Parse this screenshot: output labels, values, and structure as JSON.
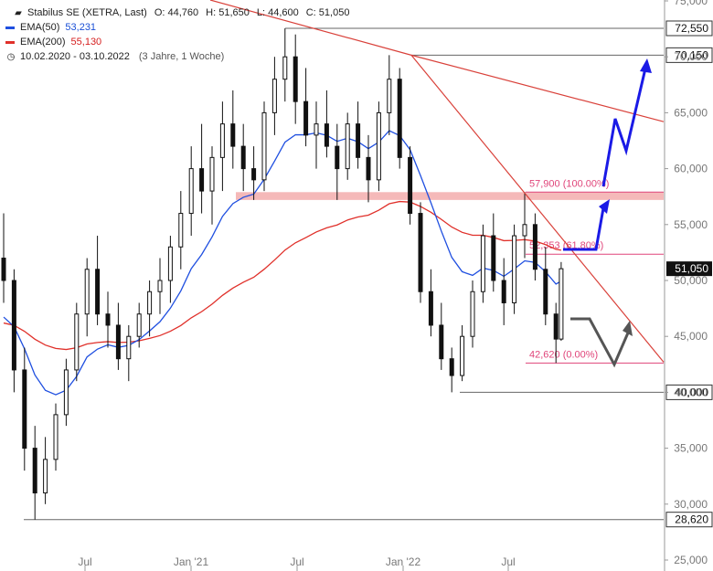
{
  "legend": {
    "title": "Stabilus SE (XETRA, Last)",
    "open": "O: 44,760",
    "high": "H: 51,650",
    "low": "L: 44,600",
    "close": "C: 51,050",
    "ema50_label": "EMA(50)",
    "ema50_value": "53,231",
    "ema200_label": "EMA(200)",
    "ema200_value": "55,130",
    "range": "10.02.2020 - 03.10.2022",
    "duration": "(3 Jahre, 1 Woche)"
  },
  "colors": {
    "ema50": "#1f4fe0",
    "ema200": "#e0302a",
    "trendline": "#d9413a",
    "projection": "#1a1ae6",
    "grey_arrow": "#555555",
    "fib_text": "#e0457a",
    "resistance_zone": "#f2a8a8"
  },
  "icons": [
    "candlestick-icon",
    "clock-icon"
  ],
  "chart_data": {
    "type": "candlestick",
    "title": "Stabilus SE (XETRA, Last)",
    "ylim": [
      25000,
      75000
    ],
    "y_ticks": [
      "25,000",
      "30,000",
      "35,000",
      "40,000",
      "45,000",
      "50,000",
      "55,000",
      "60,000",
      "65,000",
      "70,000",
      "75,000"
    ],
    "x_ticks": [
      "Jul",
      "Jan '21",
      "Jul",
      "Jan '22",
      "Jul"
    ],
    "last_price": "51,050",
    "ema50_last": "53,231",
    "ema200_last": "55,130",
    "price_levels": [
      {
        "label": "72,550",
        "value": 72550
      },
      {
        "label": "70,150",
        "value": 70150
      },
      {
        "label": "40,000",
        "value": 40000
      },
      {
        "label": "28,620",
        "value": 28620
      }
    ],
    "fib_labels": [
      {
        "label": "57,900 (100.00%)",
        "value": 57900
      },
      {
        "label": "52,353 (61.80%)",
        "value": 52353
      },
      {
        "label": "42,620 (0.00%)",
        "value": 42620
      }
    ],
    "resistance_zone": [
      57200,
      57900
    ],
    "candles_weekly_approx": [
      {
        "t": 0,
        "o": 52000,
        "h": 56000,
        "l": 48000,
        "c": 50000
      },
      {
        "t": 2,
        "o": 50000,
        "h": 51000,
        "l": 40000,
        "c": 42000
      },
      {
        "t": 4,
        "o": 42000,
        "h": 44000,
        "l": 33000,
        "c": 35000
      },
      {
        "t": 6,
        "o": 35000,
        "h": 37000,
        "l": 28620,
        "c": 31000
      },
      {
        "t": 8,
        "o": 31000,
        "h": 36000,
        "l": 30000,
        "c": 34000
      },
      {
        "t": 10,
        "o": 34000,
        "h": 39000,
        "l": 33000,
        "c": 38000
      },
      {
        "t": 12,
        "o": 38000,
        "h": 43000,
        "l": 37000,
        "c": 42000
      },
      {
        "t": 14,
        "o": 42000,
        "h": 48000,
        "l": 41000,
        "c": 47000
      },
      {
        "t": 16,
        "o": 47000,
        "h": 52000,
        "l": 45000,
        "c": 51000
      },
      {
        "t": 18,
        "o": 51000,
        "h": 54000,
        "l": 46000,
        "c": 47000
      },
      {
        "t": 20,
        "o": 47000,
        "h": 49000,
        "l": 44000,
        "c": 46000
      },
      {
        "t": 22,
        "o": 46000,
        "h": 48000,
        "l": 42000,
        "c": 43000
      },
      {
        "t": 24,
        "o": 43000,
        "h": 46000,
        "l": 41000,
        "c": 45000
      },
      {
        "t": 26,
        "o": 45000,
        "h": 48000,
        "l": 44000,
        "c": 47000
      },
      {
        "t": 28,
        "o": 47000,
        "h": 50000,
        "l": 45000,
        "c": 49000
      },
      {
        "t": 30,
        "o": 49000,
        "h": 52000,
        "l": 47000,
        "c": 50000
      },
      {
        "t": 32,
        "o": 50000,
        "h": 54000,
        "l": 48000,
        "c": 53000
      },
      {
        "t": 34,
        "o": 53000,
        "h": 58000,
        "l": 51000,
        "c": 56000
      },
      {
        "t": 36,
        "o": 56000,
        "h": 62000,
        "l": 54000,
        "c": 60000
      },
      {
        "t": 38,
        "o": 60000,
        "h": 64000,
        "l": 56000,
        "c": 58000
      },
      {
        "t": 40,
        "o": 58000,
        "h": 62000,
        "l": 55000,
        "c": 61000
      },
      {
        "t": 42,
        "o": 61000,
        "h": 66000,
        "l": 58000,
        "c": 64000
      },
      {
        "t": 44,
        "o": 64000,
        "h": 67000,
        "l": 60000,
        "c": 62000
      },
      {
        "t": 46,
        "o": 62000,
        "h": 64000,
        "l": 58000,
        "c": 60000
      },
      {
        "t": 48,
        "o": 60000,
        "h": 62000,
        "l": 57200,
        "c": 59000
      },
      {
        "t": 50,
        "o": 59000,
        "h": 66000,
        "l": 58000,
        "c": 65000
      },
      {
        "t": 52,
        "o": 65000,
        "h": 70000,
        "l": 63000,
        "c": 68000
      },
      {
        "t": 54,
        "o": 68000,
        "h": 72550,
        "l": 66000,
        "c": 70000
      },
      {
        "t": 56,
        "o": 70000,
        "h": 72000,
        "l": 64000,
        "c": 66000
      },
      {
        "t": 58,
        "o": 66000,
        "h": 69000,
        "l": 62000,
        "c": 63000
      },
      {
        "t": 60,
        "o": 63000,
        "h": 66000,
        "l": 60000,
        "c": 64000
      },
      {
        "t": 62,
        "o": 64000,
        "h": 67000,
        "l": 61000,
        "c": 62000
      },
      {
        "t": 64,
        "o": 62000,
        "h": 64000,
        "l": 57200,
        "c": 60000
      },
      {
        "t": 66,
        "o": 60000,
        "h": 65000,
        "l": 59000,
        "c": 64000
      },
      {
        "t": 68,
        "o": 64000,
        "h": 66000,
        "l": 60000,
        "c": 61000
      },
      {
        "t": 70,
        "o": 61000,
        "h": 63000,
        "l": 57000,
        "c": 59000
      },
      {
        "t": 72,
        "o": 59000,
        "h": 66000,
        "l": 58000,
        "c": 65000
      },
      {
        "t": 74,
        "o": 65000,
        "h": 70150,
        "l": 63000,
        "c": 68000
      },
      {
        "t": 76,
        "o": 68000,
        "h": 69000,
        "l": 60000,
        "c": 61000
      },
      {
        "t": 78,
        "o": 61000,
        "h": 62000,
        "l": 55000,
        "c": 56000
      },
      {
        "t": 80,
        "o": 56000,
        "h": 57000,
        "l": 48000,
        "c": 49000
      },
      {
        "t": 82,
        "o": 49000,
        "h": 51000,
        "l": 45000,
        "c": 46000
      },
      {
        "t": 84,
        "o": 46000,
        "h": 48000,
        "l": 42000,
        "c": 43000
      },
      {
        "t": 86,
        "o": 43000,
        "h": 44000,
        "l": 40000,
        "c": 41500
      },
      {
        "t": 88,
        "o": 41500,
        "h": 46000,
        "l": 41000,
        "c": 45000
      },
      {
        "t": 90,
        "o": 45000,
        "h": 50000,
        "l": 44000,
        "c": 49000
      },
      {
        "t": 92,
        "o": 49000,
        "h": 55000,
        "l": 48000,
        "c": 54000
      },
      {
        "t": 94,
        "o": 54000,
        "h": 56000,
        "l": 49000,
        "c": 50000
      },
      {
        "t": 96,
        "o": 50000,
        "h": 52000,
        "l": 46000,
        "c": 48000
      },
      {
        "t": 98,
        "o": 48000,
        "h": 55000,
        "l": 47000,
        "c": 54000
      },
      {
        "t": 100,
        "o": 54000,
        "h": 57900,
        "l": 52000,
        "c": 55000
      },
      {
        "t": 102,
        "o": 55000,
        "h": 56000,
        "l": 50000,
        "c": 51000
      },
      {
        "t": 104,
        "o": 51000,
        "h": 53000,
        "l": 46000,
        "c": 47000
      },
      {
        "t": 106,
        "o": 47000,
        "h": 48000,
        "l": 42620,
        "c": 44760
      },
      {
        "t": 107,
        "o": 44760,
        "h": 51650,
        "l": 44600,
        "c": 51050
      }
    ]
  }
}
